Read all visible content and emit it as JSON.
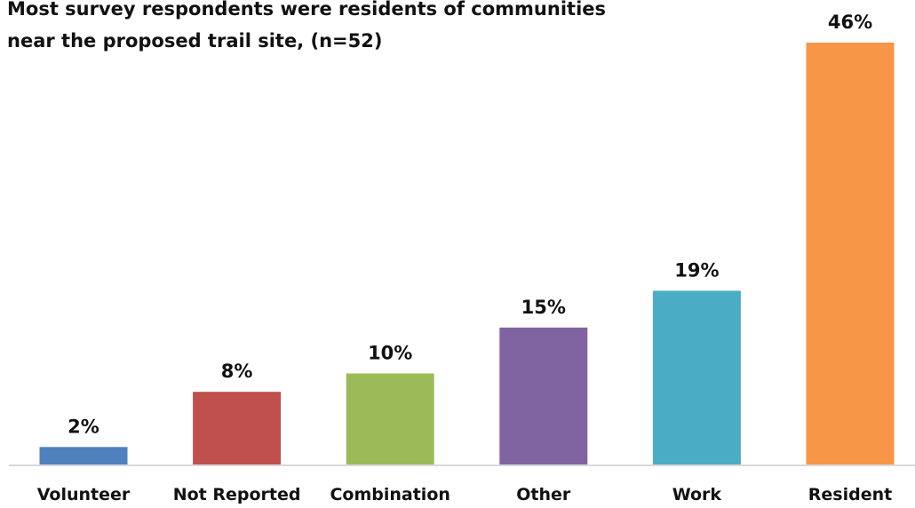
{
  "chart_data": {
    "type": "bar",
    "title": "Most survey respondents were residents of communities near the proposed trail site, (n=52)",
    "title_lines": [
      "Most survey respondents were residents of communities",
      "near the proposed trail site, (n=52)"
    ],
    "categories": [
      "Volunteer",
      "Not Reported",
      "Combination",
      "Other",
      "Work",
      "Resident"
    ],
    "values": [
      2,
      8,
      10,
      15,
      19,
      46
    ],
    "value_labels": [
      "2%",
      "8%",
      "10%",
      "15%",
      "19%",
      "46%"
    ],
    "colors": [
      "#4f81bd",
      "#c0504d",
      "#9bbb59",
      "#8064a2",
      "#4bacc6",
      "#f79646"
    ],
    "xlabel": "",
    "ylabel": "",
    "ylim": [
      0,
      46
    ],
    "grid": false,
    "legend": "none"
  }
}
